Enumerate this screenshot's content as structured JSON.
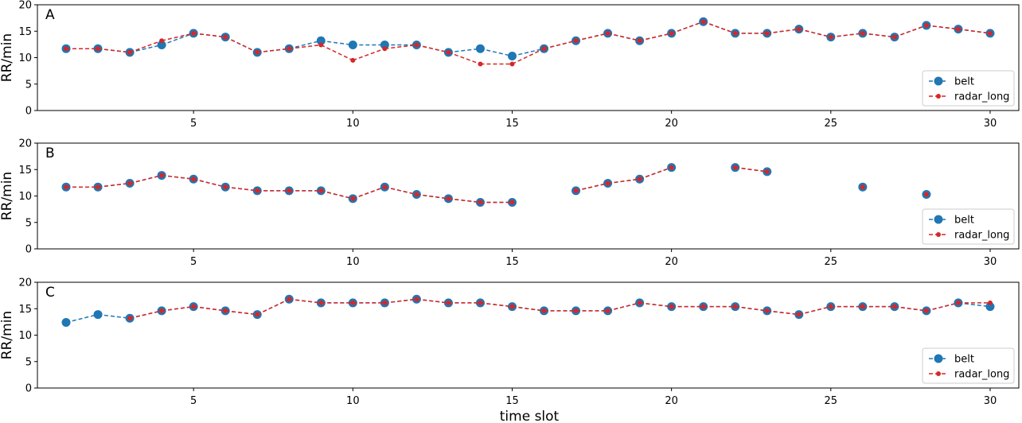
{
  "colors": {
    "belt": "#1f77b4",
    "radar_long": "#d62728",
    "axes": "#000000",
    "background": "#ffffff"
  },
  "xlabel": "time slot",
  "chart_data": [
    {
      "type": "line",
      "panel_label": "A",
      "ylabel": "RR/min",
      "xlim": [
        0.1,
        30.9
      ],
      "ylim": [
        0,
        20
      ],
      "xticks": [
        5,
        10,
        15,
        20,
        25,
        30
      ],
      "yticks": [
        0,
        5,
        10,
        15,
        20
      ],
      "legend": "bottom-right",
      "x": [
        1,
        2,
        3,
        4,
        5,
        6,
        7,
        8,
        9,
        10,
        11,
        12,
        13,
        14,
        15,
        16,
        17,
        18,
        19,
        20,
        21,
        22,
        23,
        24,
        25,
        26,
        27,
        28,
        29,
        30
      ],
      "series": [
        {
          "name": "belt",
          "style": "dashed-large-markers",
          "values": [
            11.7,
            11.7,
            11.0,
            12.4,
            14.6,
            13.9,
            11.0,
            11.7,
            13.2,
            12.4,
            12.4,
            12.4,
            11.0,
            11.7,
            10.3,
            11.7,
            13.2,
            14.6,
            13.2,
            14.6,
            16.8,
            14.6,
            14.6,
            15.4,
            13.9,
            14.6,
            13.9,
            16.1,
            15.4,
            14.6
          ]
        },
        {
          "name": "radar_long",
          "style": "dashed-small-markers",
          "values": [
            11.7,
            11.7,
            11.0,
            13.2,
            14.6,
            13.9,
            11.0,
            11.7,
            12.4,
            9.5,
            11.7,
            12.4,
            11.0,
            8.8,
            8.8,
            11.7,
            13.2,
            14.6,
            13.2,
            14.6,
            16.8,
            14.6,
            14.6,
            15.4,
            13.9,
            14.6,
            13.9,
            16.1,
            15.4,
            14.6
          ]
        }
      ]
    },
    {
      "type": "line",
      "panel_label": "B",
      "ylabel": "RR/min",
      "xlim": [
        0.1,
        30.9
      ],
      "ylim": [
        0,
        20
      ],
      "xticks": [
        5,
        10,
        15,
        20,
        25,
        30
      ],
      "yticks": [
        0,
        5,
        10,
        15,
        20
      ],
      "legend": "bottom-right",
      "x": [
        1,
        2,
        3,
        4,
        5,
        6,
        7,
        8,
        9,
        10,
        11,
        12,
        13,
        14,
        15,
        16,
        17,
        18,
        19,
        20,
        21,
        22,
        23,
        24,
        25,
        26,
        27,
        28,
        29,
        30
      ],
      "series": [
        {
          "name": "belt",
          "style": "dashed-large-markers",
          "values": [
            11.7,
            11.7,
            12.4,
            13.9,
            13.2,
            11.7,
            11.0,
            11.0,
            11.0,
            9.5,
            11.7,
            10.3,
            9.5,
            8.8,
            8.8,
            null,
            11.0,
            12.4,
            13.2,
            15.4,
            null,
            15.4,
            14.6,
            null,
            null,
            11.7,
            null,
            10.3,
            null,
            null
          ]
        },
        {
          "name": "radar_long",
          "style": "dashed-small-markers",
          "values": [
            11.7,
            11.7,
            12.4,
            13.9,
            13.2,
            11.7,
            11.0,
            11.0,
            11.0,
            9.5,
            11.7,
            10.3,
            9.5,
            8.8,
            8.8,
            null,
            11.0,
            12.4,
            13.2,
            15.4,
            null,
            15.4,
            14.6,
            null,
            null,
            11.7,
            null,
            10.3,
            null,
            null
          ]
        }
      ]
    },
    {
      "type": "line",
      "panel_label": "C",
      "ylabel": "RR/min",
      "xlim": [
        0.1,
        30.9
      ],
      "ylim": [
        0,
        20
      ],
      "xticks": [
        5,
        10,
        15,
        20,
        25,
        30
      ],
      "yticks": [
        0,
        5,
        10,
        15,
        20
      ],
      "legend": "bottom-right",
      "x": [
        1,
        2,
        3,
        4,
        5,
        6,
        7,
        8,
        9,
        10,
        11,
        12,
        13,
        14,
        15,
        16,
        17,
        18,
        19,
        20,
        21,
        22,
        23,
        24,
        25,
        26,
        27,
        28,
        29,
        30
      ],
      "series": [
        {
          "name": "belt",
          "style": "dashed-large-markers",
          "values": [
            12.4,
            13.9,
            13.2,
            14.6,
            15.4,
            14.6,
            13.9,
            16.8,
            16.1,
            16.1,
            16.1,
            16.8,
            16.1,
            16.1,
            15.4,
            14.6,
            14.6,
            14.6,
            16.1,
            15.4,
            15.4,
            15.4,
            14.6,
            13.9,
            15.4,
            15.4,
            15.4,
            14.6,
            16.1,
            15.4
          ]
        },
        {
          "name": "radar_long",
          "style": "dashed-small-markers",
          "values": [
            null,
            null,
            13.2,
            14.6,
            15.4,
            14.6,
            13.9,
            16.8,
            16.1,
            16.1,
            16.1,
            16.8,
            16.1,
            16.1,
            15.4,
            14.6,
            14.6,
            14.6,
            16.1,
            15.4,
            15.4,
            15.4,
            14.6,
            13.9,
            15.4,
            15.4,
            15.4,
            14.6,
            16.1,
            16.1
          ]
        }
      ]
    }
  ]
}
